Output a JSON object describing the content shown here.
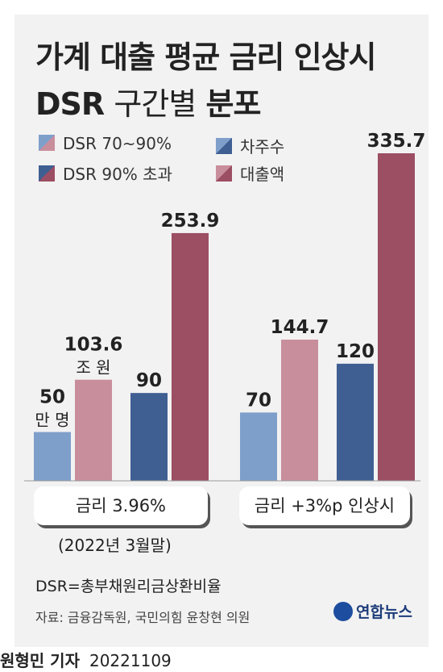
{
  "title": {
    "line1": "가계 대출 평균 금리 인상시",
    "line2_bold_a": "DSR",
    "line2_light": "구간별",
    "line2_bold_b": "분포"
  },
  "legend": [
    {
      "label": "DSR 70~90%",
      "colors": [
        "#7f9fcb",
        "#c98e9c"
      ]
    },
    {
      "label": "차주수",
      "colors": [
        "#7f9fcb",
        "#3f5f93"
      ]
    },
    {
      "label": "DSR 90% 초과",
      "colors": [
        "#3f5f93",
        "#9c4e63"
      ]
    },
    {
      "label": "대출액",
      "colors": [
        "#c98e9c",
        "#9c4e63"
      ]
    }
  ],
  "colors": {
    "borrowers_70_90": "#7f9fcb",
    "loans_70_90": "#c98e9c",
    "borrowers_over_90": "#3f5f93",
    "loans_over_90": "#9c4e63"
  },
  "chart_data": {
    "type": "bar",
    "categories": [
      "금리 3.96%",
      "금리 +3%p 인상시"
    ],
    "series": [
      {
        "name": "DSR 70~90% 차주수",
        "unit": "만 명",
        "values": [
          50,
          70
        ]
      },
      {
        "name": "DSR 70~90% 대출액",
        "unit": "조 원",
        "values": [
          103.6,
          144.7
        ]
      },
      {
        "name": "DSR 90% 초과 차주수",
        "unit": "만 명",
        "values": [
          90,
          120
        ]
      },
      {
        "name": "DSR 90% 초과 대출액",
        "unit": "조 원",
        "values": [
          253.9,
          335.7
        ]
      }
    ],
    "unit_labels": {
      "borrowers": "만 명",
      "loans": "조 원"
    },
    "ylim": [
      0,
      335.7
    ],
    "grid": false,
    "legend_position": "top"
  },
  "notes": {
    "date": "(2022년 3월말)",
    "dsr": "DSR=총부채원리금상환비율",
    "source": "자료: 금융감독원, 국민의힘 윤창현 의원",
    "logo": "연합뉴스",
    "byline_name": "원형민 기자",
    "byline_date": "20221109"
  }
}
